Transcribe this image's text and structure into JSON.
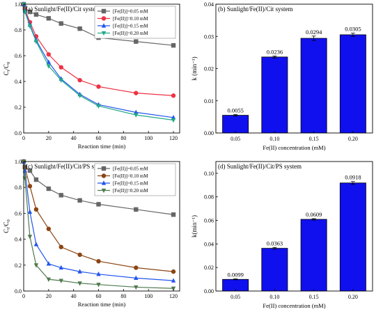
{
  "colors": {
    "gray": "#666666",
    "red": "#ee3344",
    "blue": "#2255ee",
    "green": "#22aa88",
    "brown": "#8b4513",
    "olive": "#4f7a4f",
    "bar": "#1010ee"
  },
  "chart_data": [
    {
      "type": "line",
      "title": "(a) Sunlight/Fe(II)/Cit system",
      "xlabel": "Reaction time (min)",
      "ylabel": "Ct/C0",
      "xlim": [
        0,
        125
      ],
      "ylim": [
        0,
        1.0
      ],
      "xticks": [
        0,
        20,
        40,
        60,
        80,
        100,
        120
      ],
      "yticks": [
        0.0,
        0.2,
        0.4,
        0.6,
        0.8,
        1.0
      ],
      "legend_position": "top-right",
      "x": [
        0,
        1,
        5,
        10,
        20,
        30,
        45,
        60,
        90,
        120
      ],
      "series": [
        {
          "name": "[Fe(II)]=0.05 mM",
          "values": [
            1.0,
            0.97,
            0.94,
            0.92,
            0.89,
            0.85,
            0.81,
            0.74,
            0.71,
            0.68
          ],
          "marker": "square",
          "color": "gray"
        },
        {
          "name": "[Fe(II)]=0.10 mM",
          "values": [
            1.0,
            0.96,
            0.86,
            0.75,
            0.61,
            0.51,
            0.41,
            0.36,
            0.31,
            0.29
          ],
          "marker": "circle",
          "color": "red"
        },
        {
          "name": "[Fe(II)]=0.15 mM",
          "values": [
            1.0,
            0.95,
            0.84,
            0.72,
            0.55,
            0.42,
            0.3,
            0.22,
            0.16,
            0.12
          ],
          "marker": "triangle-up",
          "color": "blue"
        },
        {
          "name": "[Fe(II)]=0.20 mM",
          "values": [
            1.0,
            0.94,
            0.83,
            0.71,
            0.52,
            0.41,
            0.29,
            0.21,
            0.14,
            0.1
          ],
          "marker": "triangle-down",
          "color": "green"
        }
      ]
    },
    {
      "type": "bar",
      "title": "(b) Sunlight/Fe(II)/Cit system",
      "xlabel": "Fe(II) concentration (mM)",
      "ylabel": "k (min⁻¹)",
      "ylim": [
        0,
        0.04
      ],
      "yticks": [
        0.0,
        0.01,
        0.02,
        0.03,
        0.04
      ],
      "ytick_labels": [
        "0.00",
        "0.01",
        "0.02",
        "0.03",
        "0.04"
      ],
      "categories": [
        "0.05",
        "0.10",
        "0.15",
        "0.20"
      ],
      "values": [
        0.0055,
        0.0236,
        0.0294,
        0.0305
      ],
      "errors": [
        0.0002,
        0.0003,
        0.0007,
        0.0005
      ],
      "data_labels": [
        "0.0055",
        "0.0236",
        "0.0294",
        "0.0305"
      ]
    },
    {
      "type": "line",
      "title": "(c) Sunlight/Fe(II)/Cit/PS system",
      "xlabel": "Reaction time (min)",
      "ylabel": "Ct/C0",
      "xlim": [
        0,
        125
      ],
      "ylim": [
        0,
        1.0
      ],
      "xticks": [
        0,
        20,
        40,
        60,
        80,
        100,
        120
      ],
      "yticks": [
        0.0,
        0.2,
        0.4,
        0.6,
        0.8,
        1.0
      ],
      "legend_position": "top-right",
      "x": [
        0,
        1,
        5,
        10,
        20,
        30,
        45,
        60,
        90,
        120
      ],
      "series": [
        {
          "name": "[Fe(II)]=0.05 mM",
          "values": [
            1.0,
            0.96,
            0.93,
            0.86,
            0.79,
            0.74,
            0.7,
            0.67,
            0.63,
            0.59
          ],
          "marker": "square",
          "color": "gray"
        },
        {
          "name": "[Fe(II)]=0.10 mM",
          "values": [
            1.0,
            0.95,
            0.81,
            0.63,
            0.48,
            0.34,
            0.28,
            0.23,
            0.18,
            0.15
          ],
          "marker": "circle",
          "color": "brown"
        },
        {
          "name": "[Fe(II)]=0.15 mM",
          "values": [
            1.0,
            0.93,
            0.61,
            0.36,
            0.21,
            0.18,
            0.15,
            0.13,
            0.1,
            0.08
          ],
          "marker": "triangle-up",
          "color": "blue"
        },
        {
          "name": "[Fe(II)]=0.20 mM",
          "values": [
            1.0,
            0.87,
            0.42,
            0.2,
            0.09,
            0.08,
            0.06,
            0.05,
            0.03,
            0.02
          ],
          "marker": "triangle-down",
          "color": "olive"
        }
      ]
    },
    {
      "type": "bar",
      "title": "(d) Sunlight/Fe(II)/Cit/PS system",
      "xlabel": "Fe(II) concentration (mM)",
      "ylabel": "k(min⁻¹)",
      "ylim": [
        0,
        0.11
      ],
      "yticks": [
        0.0,
        0.02,
        0.04,
        0.06,
        0.08,
        0.1
      ],
      "ytick_labels": [
        "0.00",
        "0.02",
        "0.04",
        "0.06",
        "0.08",
        "0.10"
      ],
      "categories": [
        "0.05",
        "0.10",
        "0.15",
        "0.20"
      ],
      "values": [
        0.0099,
        0.0363,
        0.0609,
        0.0918
      ],
      "errors": [
        0.0004,
        0.0008,
        0.0006,
        0.0012
      ],
      "data_labels": [
        "0.0099",
        "0.0363",
        "0.0609",
        "0.0918"
      ]
    }
  ]
}
